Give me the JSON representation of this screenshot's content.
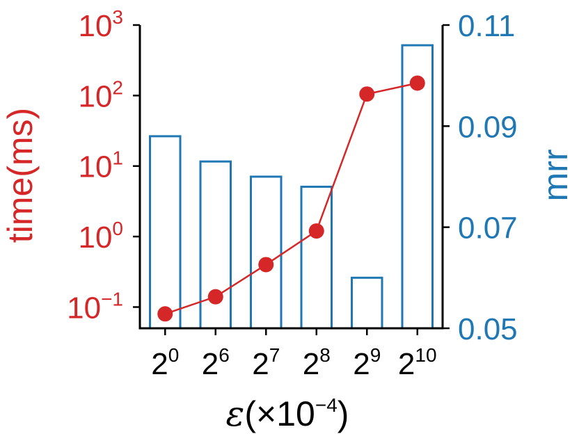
{
  "chart_data": {
    "type": "bar",
    "title": "",
    "xlabel": {
      "symbol": "ε",
      "open": "(×10",
      "exp": "−4",
      "close": ")"
    },
    "categories": [
      {
        "base": "2",
        "exp": "0"
      },
      {
        "base": "2",
        "exp": "6"
      },
      {
        "base": "2",
        "exp": "7"
      },
      {
        "base": "2",
        "exp": "8"
      },
      {
        "base": "2",
        "exp": "9"
      },
      {
        "base": "2",
        "exp": "10"
      }
    ],
    "y_left": {
      "label": "time(ms)",
      "scale": "log",
      "range": [
        0.05,
        1000
      ],
      "ticks": [
        {
          "value": 0.1,
          "base": "10",
          "exp": "−1"
        },
        {
          "value": 1,
          "base": "10",
          "exp": "0"
        },
        {
          "value": 10,
          "base": "10",
          "exp": "1"
        },
        {
          "value": 100,
          "base": "10",
          "exp": "2"
        },
        {
          "value": 1000,
          "base": "10",
          "exp": "3"
        }
      ],
      "color": "#d62728"
    },
    "y_right": {
      "label": "mrr",
      "scale": "linear",
      "range": [
        0.05,
        0.11
      ],
      "ticks": [
        {
          "value": 0.05,
          "label": "0.05"
        },
        {
          "value": 0.07,
          "label": "0.07"
        },
        {
          "value": 0.09,
          "label": "0.09"
        },
        {
          "value": 0.11,
          "label": "0.11"
        }
      ],
      "color": "#1f77b4"
    },
    "series": [
      {
        "axis": "right",
        "type": "bar",
        "values": [
          0.088,
          0.083,
          0.08,
          0.078,
          0.06,
          0.106
        ]
      },
      {
        "axis": "left",
        "type": "line",
        "values": [
          0.08,
          0.14,
          0.4,
          1.2,
          105,
          150
        ]
      }
    ],
    "grid": false,
    "legend": "none"
  }
}
